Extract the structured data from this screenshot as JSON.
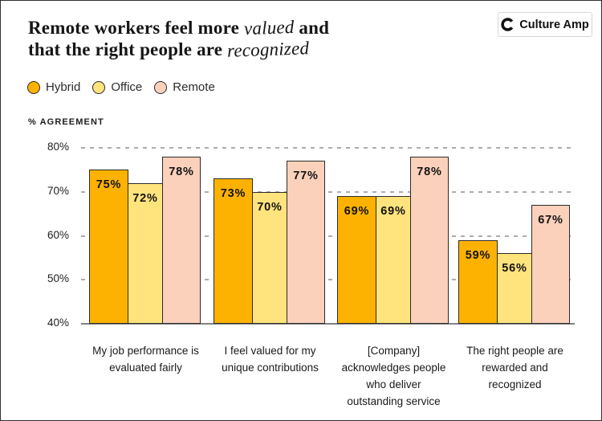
{
  "header": {
    "title": {
      "l1a": "Remote workers feel more ",
      "l1b": "valued",
      "l1c": " and",
      "l2a": "that the right people are ",
      "l2b": "recognized"
    },
    "logo": {
      "text": "Culture Amp",
      "icon": "culture-amp-c-mark"
    }
  },
  "chart_data": {
    "type": "bar",
    "title": "Remote workers feel more valued and that the right people are recognized",
    "ylabel": "% AGREEMENT",
    "xlabel": "",
    "ylim": [
      40,
      80
    ],
    "yticks": [
      80,
      70,
      60,
      50,
      40
    ],
    "ytick_suffix": "%",
    "value_suffix": "%",
    "grid": "dashed-horizontal-gridlines",
    "legend_position": "top-left",
    "categories": [
      "My job performance is evaluated fairly",
      "I feel valued for my unique contributions",
      "[Company] acknowledges people who deliver outstanding service",
      "The right people are rewarded and recognized"
    ],
    "category_lines": [
      [
        "My job performance is",
        "evaluated fairly"
      ],
      [
        "I feel valued for my",
        "unique contributions"
      ],
      [
        "[Company]",
        "acknowledges people",
        "who deliver",
        "outstanding service"
      ],
      [
        "The right people are",
        "rewarded and",
        "recognized"
      ]
    ],
    "series": [
      {
        "name": "Hybrid",
        "color": "#FDB202",
        "values": [
          75,
          73,
          69,
          59
        ]
      },
      {
        "name": "Office",
        "color": "#FFE37D",
        "values": [
          72,
          70,
          69,
          56
        ]
      },
      {
        "name": "Remote",
        "color": "#FBD1BB",
        "values": [
          78,
          77,
          78,
          67
        ]
      }
    ],
    "bar_border_color": "#2b2b2b"
  }
}
